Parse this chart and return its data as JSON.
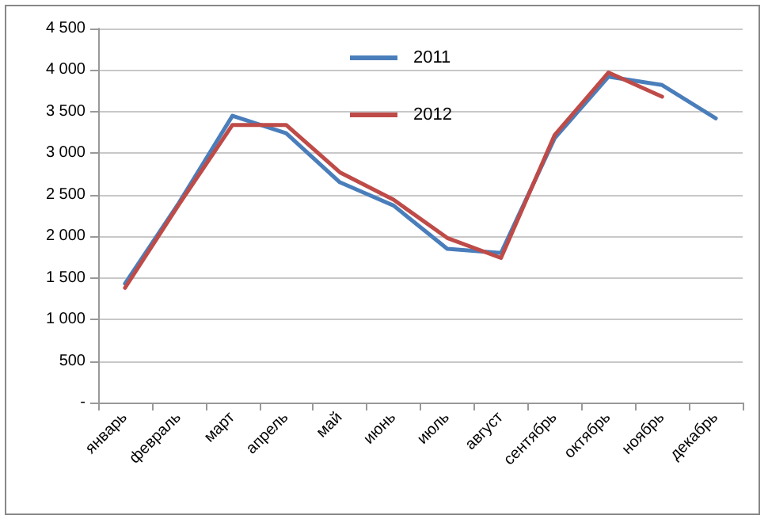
{
  "chart_data": {
    "type": "line",
    "categories": [
      "январь",
      "февраль",
      "март",
      "апрель",
      "май",
      "июнь",
      "июль",
      "август",
      "сентябрь",
      "октябрь",
      "ноябрь",
      "декабрь"
    ],
    "series": [
      {
        "name": "2011",
        "color": "#4a7ebb",
        "values": [
          1430,
          2400,
          3450,
          3240,
          2650,
          2370,
          1850,
          1800,
          3180,
          3920,
          3820,
          3420
        ]
      },
      {
        "name": "2012",
        "color": "#be4b48",
        "values": [
          1380,
          2380,
          3340,
          3340,
          2770,
          2440,
          1980,
          1740,
          3220,
          3970,
          3680,
          null
        ]
      }
    ],
    "ylim": [
      0,
      4500
    ],
    "yticks": [
      {
        "value": 0,
        "label": "-"
      },
      500,
      {
        "value": 1000,
        "label": "1 000"
      },
      {
        "value": 1500,
        "label": "1 500"
      },
      {
        "value": 2000,
        "label": "2 000"
      },
      {
        "value": 2500,
        "label": "2 500"
      },
      {
        "value": 3000,
        "label": "3 000"
      },
      {
        "value": 3500,
        "label": "3 500"
      },
      {
        "value": 4000,
        "label": "4 000"
      },
      {
        "value": 4500,
        "label": "4 500"
      }
    ],
    "grid": "y",
    "legend": "top",
    "marker": "none",
    "line_style": "solid"
  }
}
